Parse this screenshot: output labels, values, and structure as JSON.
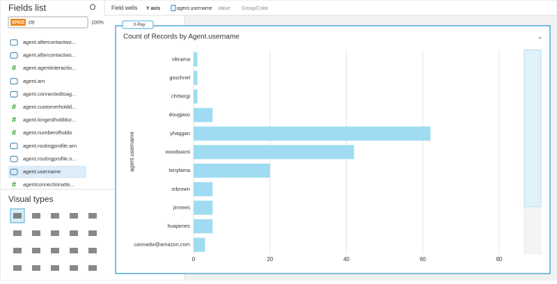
{
  "sidebar": {
    "title": "Fields list",
    "spice": "SPICE",
    "dataset": "ctr",
    "usage": "100%",
    "fields": [
      "agent.aftercontactwo...",
      "agent.aftercontactwo...",
      "agent.agentinteractio...",
      "agent.arn",
      "agent.connectedtoag...",
      "agent.customerholdd...",
      "agent.longestholddur...",
      "agent.numberofholds",
      "agent.routingprofile.arn",
      "agent.routingprofile.n...",
      "agent.username",
      "agentconnectionatte..."
    ],
    "visual_types_title": "Visual types"
  },
  "field_wells": {
    "title": "Field wells",
    "y_axis": "Y axis",
    "y_field": "agent.username",
    "value": "Value",
    "group": "Group/Color"
  },
  "badge": "X-Ray",
  "chart_data": {
    "type": "barh",
    "title": "Count of Records by Agent.username",
    "y_label": "agent.username",
    "categories": [
      "vikrama",
      "gsschnel",
      "chrbergi",
      "dougjaso",
      "yhaggan",
      "woodwami",
      "tonylama",
      "srbrown",
      "jimrees",
      "huajames",
      "cannadw@amazon.com"
    ],
    "values": [
      1,
      1,
      1,
      5,
      62,
      42,
      20,
      5,
      5,
      5,
      3
    ],
    "color": "#9fdcf1",
    "xlim": [
      0,
      86
    ],
    "xticks": [
      0,
      20,
      40,
      60,
      80
    ],
    "grid": true
  }
}
